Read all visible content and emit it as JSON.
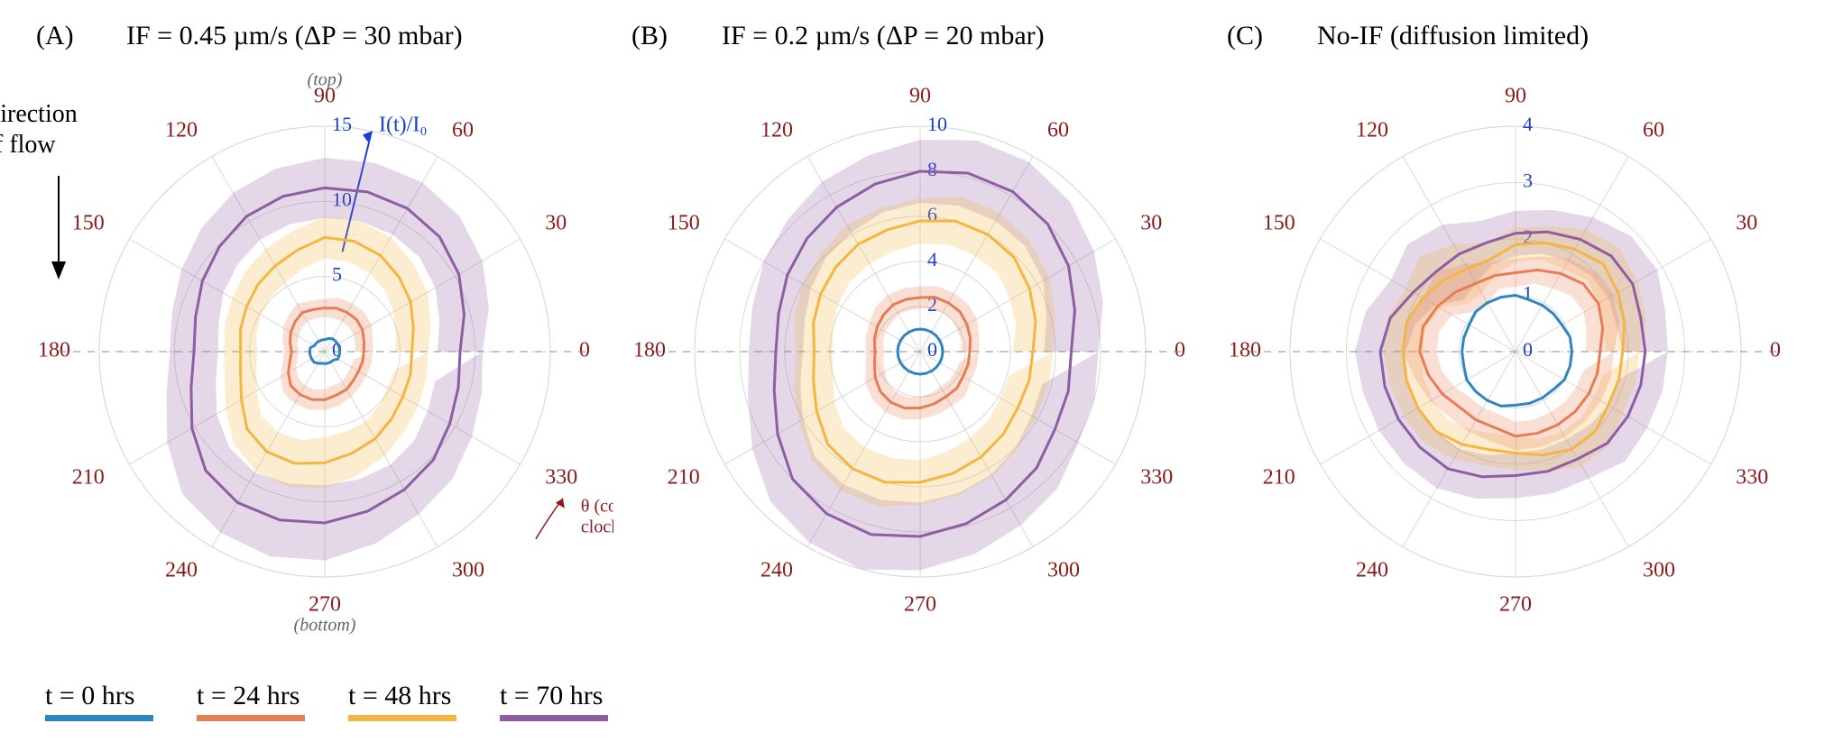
{
  "figure": {
    "background_color": "#ffffff",
    "series_colors": {
      "t0": "#2e86c1",
      "t24": "#e67e55",
      "t48": "#f4b642",
      "t70": "#8e5ea2"
    },
    "series_band_opacity": 0.25,
    "line_width": 3,
    "angle_label_color": "#8b1a1a",
    "radial_label_color": "#1a3fd1",
    "gridline_color": "#d9d9d9",
    "angle_step_deg": 30,
    "title_fontsize": 30,
    "angle_fontsize": 24,
    "radial_fontsize": 22,
    "legend_fontsize": 30
  },
  "flow_label_line1": "Direction",
  "flow_label_line2": "of  flow",
  "panels": [
    {
      "letter": "(A)",
      "title": "IF = 0.45 µm/s (ΔP = 30 mbar)",
      "rmax": 15,
      "radial_ticks": [
        0,
        5,
        10,
        15
      ],
      "radial_axis_label": "I(t)/I₀",
      "top_note": "(top)",
      "bottom_note": "(bottom)",
      "theta_note_line1": "θ (counter-",
      "theta_note_line2": "clockwise)",
      "show_radial_arrow": true,
      "series": {
        "t0": [
          1.0,
          1.0,
          1.0,
          1.0,
          1.0,
          0.9,
          0.8,
          0.8,
          0.8,
          0.8,
          0.8,
          1.0,
          1.0,
          1.0,
          1.0,
          1.0,
          0.9,
          0.8,
          0.8,
          0.8,
          0.8,
          0.8,
          1.0,
          1.0
        ],
        "t24": [
          2.6,
          2.7,
          2.9,
          3.0,
          3.0,
          3.0,
          2.9,
          2.9,
          3.0,
          2.8,
          2.6,
          2.4,
          2.2,
          2.4,
          2.8,
          3.2,
          3.3,
          3.3,
          3.2,
          3.0,
          2.9,
          2.7,
          2.6,
          2.6
        ],
        "t48": [
          5.8,
          6.1,
          6.6,
          7.0,
          7.4,
          7.6,
          7.6,
          7.0,
          6.6,
          6.3,
          6.0,
          5.8,
          5.6,
          5.8,
          6.4,
          7.3,
          7.7,
          7.7,
          7.4,
          7.0,
          6.7,
          6.3,
          6.0,
          5.9
        ],
        "t70": [
          9.0,
          9.6,
          10.3,
          10.8,
          11.0,
          11.0,
          10.9,
          10.7,
          10.4,
          9.9,
          9.4,
          8.9,
          8.7,
          9.2,
          10.2,
          11.2,
          11.6,
          11.6,
          11.4,
          11.0,
          10.6,
          10.2,
          9.6,
          9.2
        ]
      },
      "bands": {
        "t24": [
          0.6,
          0.6,
          0.7,
          0.7,
          0.7,
          0.7,
          0.6,
          0.6,
          0.7,
          0.6,
          0.6,
          0.5,
          0.5,
          0.5,
          0.6,
          0.7,
          0.7,
          0.7,
          0.7,
          0.7,
          0.6,
          0.6,
          0.6,
          0.6
        ],
        "t48": [
          1.1,
          1.2,
          1.3,
          1.3,
          1.4,
          1.4,
          1.4,
          1.3,
          1.3,
          1.2,
          1.1,
          1.1,
          1.1,
          1.1,
          1.2,
          1.3,
          1.5,
          1.6,
          1.7,
          1.5,
          1.3,
          1.2,
          1.2,
          1.1
        ],
        "t70": [
          1.5,
          1.7,
          1.8,
          1.9,
          2.0,
          2.0,
          2.0,
          1.9,
          1.8,
          1.7,
          1.6,
          1.6,
          1.6,
          1.7,
          1.9,
          2.2,
          2.3,
          2.5,
          2.5,
          2.2,
          1.9,
          1.8,
          1.7,
          1.6
        ]
      }
    },
    {
      "letter": "(B)",
      "title": "IF = 0.2 µm/s (ΔP = 20 mbar)",
      "rmax": 10,
      "radial_ticks": [
        0,
        2,
        4,
        6,
        8,
        10
      ],
      "series": {
        "t0": [
          1.0,
          1.0,
          1.0,
          1.0,
          1.0,
          1.0,
          1.0,
          1.0,
          1.0,
          1.0,
          1.0,
          1.0,
          1.0,
          1.0,
          1.0,
          1.0,
          1.0,
          1.0,
          1.0,
          1.0,
          1.0,
          1.0,
          1.0,
          1.0
        ],
        "t24": [
          2.2,
          2.3,
          2.4,
          2.5,
          2.5,
          2.5,
          2.4,
          2.4,
          2.4,
          2.3,
          2.2,
          2.1,
          2.0,
          2.1,
          2.3,
          2.5,
          2.6,
          2.6,
          2.5,
          2.4,
          2.3,
          2.3,
          2.2,
          2.2
        ],
        "t48": [
          5.0,
          5.3,
          5.6,
          5.9,
          6.0,
          6.0,
          5.8,
          5.6,
          5.5,
          5.3,
          5.1,
          4.9,
          4.7,
          4.9,
          5.3,
          5.8,
          6.0,
          6.0,
          5.8,
          5.6,
          5.4,
          5.2,
          5.0,
          5.0
        ],
        "t70": [
          6.7,
          7.1,
          7.6,
          8.0,
          8.2,
          8.2,
          8.0,
          7.7,
          7.4,
          7.1,
          6.8,
          6.5,
          6.4,
          6.7,
          7.3,
          8.0,
          8.3,
          8.4,
          8.2,
          7.9,
          7.6,
          7.3,
          6.9,
          6.8
        ]
      },
      "bands": {
        "t24": [
          0.4,
          0.4,
          0.5,
          0.5,
          0.5,
          0.5,
          0.5,
          0.5,
          0.5,
          0.5,
          0.4,
          0.4,
          0.4,
          0.4,
          0.5,
          0.5,
          0.5,
          0.5,
          0.5,
          0.5,
          0.5,
          0.5,
          0.4,
          0.4
        ],
        "t48": [
          0.9,
          0.9,
          1.0,
          1.0,
          1.1,
          1.1,
          1.0,
          1.0,
          1.0,
          0.9,
          0.9,
          0.9,
          0.8,
          0.9,
          0.9,
          1.0,
          1.1,
          1.1,
          1.0,
          1.0,
          1.0,
          0.9,
          0.9,
          0.9
        ],
        "t70": [
          1.2,
          1.3,
          1.3,
          1.4,
          1.5,
          1.5,
          1.4,
          1.3,
          1.3,
          1.2,
          1.2,
          1.2,
          1.2,
          1.2,
          1.3,
          1.4,
          1.5,
          1.6,
          1.5,
          1.4,
          1.3,
          1.3,
          1.2,
          1.2
        ]
      }
    },
    {
      "letter": "(C)",
      "title": "No-IF (diffusion limited)",
      "rmax": 4,
      "radial_ticks": [
        0,
        1,
        2,
        3,
        4
      ],
      "series": {
        "t0": [
          1.0,
          1.0,
          0.95,
          0.95,
          0.95,
          0.95,
          1.0,
          1.0,
          1.0,
          1.0,
          0.95,
          0.95,
          0.95,
          0.95,
          1.0,
          1.0,
          1.0,
          1.0,
          0.95,
          0.95,
          0.95,
          0.95,
          1.0,
          1.0
        ],
        "t24": [
          1.5,
          1.6,
          1.7,
          1.7,
          1.6,
          1.5,
          1.4,
          1.4,
          1.4,
          1.5,
          1.6,
          1.7,
          1.7,
          1.6,
          1.5,
          1.4,
          1.4,
          1.4,
          1.5,
          1.5,
          1.5,
          1.5,
          1.5,
          1.5
        ],
        "t48": [
          1.9,
          2.0,
          2.1,
          2.2,
          2.1,
          2.0,
          1.9,
          1.7,
          1.7,
          1.8,
          1.9,
          2.0,
          2.0,
          2.0,
          2.0,
          2.0,
          1.9,
          1.8,
          1.8,
          1.9,
          2.0,
          2.0,
          1.9,
          1.9
        ],
        "t70": [
          2.3,
          2.3,
          2.4,
          2.4,
          2.3,
          2.2,
          2.1,
          2.0,
          2.0,
          2.0,
          2.1,
          2.3,
          2.4,
          2.4,
          2.4,
          2.4,
          2.4,
          2.3,
          2.2,
          2.2,
          2.2,
          2.3,
          2.3,
          2.3
        ]
      },
      "bands": {
        "t24": [
          0.25,
          0.3,
          0.3,
          0.3,
          0.3,
          0.25,
          0.25,
          0.25,
          0.4,
          0.5,
          0.3,
          0.3,
          0.3,
          0.25,
          0.25,
          0.25,
          0.25,
          0.25,
          0.25,
          0.25,
          0.25,
          0.25,
          0.25,
          0.25
        ],
        "t48": [
          0.3,
          0.4,
          0.4,
          0.4,
          0.4,
          0.3,
          0.3,
          0.3,
          0.5,
          0.6,
          0.35,
          0.35,
          0.35,
          0.3,
          0.3,
          0.3,
          0.3,
          0.3,
          0.3,
          0.3,
          0.35,
          0.35,
          0.3,
          0.3
        ],
        "t70": [
          0.4,
          0.45,
          0.5,
          0.5,
          0.45,
          0.4,
          0.4,
          0.4,
          0.6,
          0.7,
          0.45,
          0.45,
          0.45,
          0.4,
          0.4,
          0.4,
          0.4,
          0.4,
          0.4,
          0.4,
          0.4,
          0.45,
          0.4,
          0.4
        ]
      }
    }
  ],
  "legend": [
    {
      "label": "t = 0 hrs",
      "key": "t0"
    },
    {
      "label": "t = 24 hrs",
      "key": "t24"
    },
    {
      "label": "t = 48 hrs",
      "key": "t48"
    },
    {
      "label": "t = 70 hrs",
      "key": "t70"
    }
  ]
}
